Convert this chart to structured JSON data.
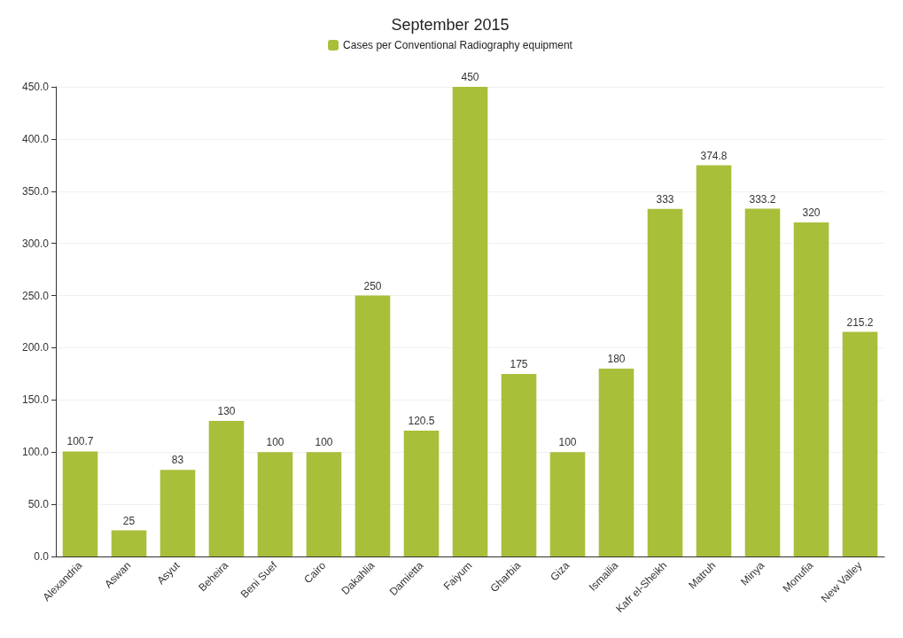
{
  "chart_data": {
    "type": "bar",
    "title": "September 2015",
    "categories": [
      "Alexandria",
      "Aswan",
      "Asyut",
      "Beheira",
      "Beni Suef",
      "Cairo",
      "Dakahlia",
      "Damietta",
      "Faiyum",
      "Gharbia",
      "Giza",
      "Ismailia",
      "Kafr el-Sheikh",
      "Matruh",
      "Minya",
      "Monufia",
      "New Valley"
    ],
    "series": [
      {
        "name": "Cases per Conventional Radiography equipment",
        "color": "#a8bf3a",
        "values": [
          100.7,
          25,
          83,
          130,
          100,
          100,
          250,
          120.5,
          450,
          175,
          100,
          180,
          333,
          374.8,
          333.2,
          320,
          215.2
        ]
      }
    ],
    "ylim": [
      0,
      450
    ],
    "yticks": [
      {
        "value": 0,
        "label": "0.0"
      },
      {
        "value": 50,
        "label": "50.0"
      },
      {
        "value": 100,
        "label": "100.0"
      },
      {
        "value": 150,
        "label": "150.0"
      },
      {
        "value": 200,
        "label": "200.0"
      },
      {
        "value": 250,
        "label": "250.0"
      },
      {
        "value": 300,
        "label": "300.0"
      },
      {
        "value": 350,
        "label": "350.0"
      },
      {
        "value": 400,
        "label": "400.0"
      },
      {
        "value": 450,
        "label": "450.0"
      }
    ],
    "grid": "y",
    "legend": "top",
    "data_labels": true
  }
}
